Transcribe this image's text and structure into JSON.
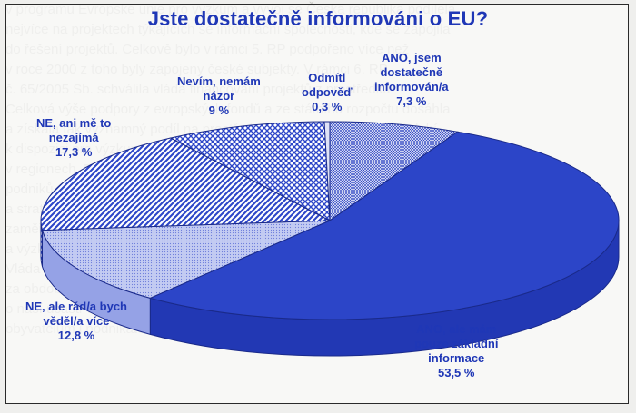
{
  "background_text": [
    "v programu Evropské unie pro výzkum a vývoj se Česká republika podílela",
    "nejvíce na projektech týkajících se informační společnosti, kde se zapojila",
    "do řešení projektů. Celkově bylo v rámci 5. RP podpořeno více než",
    "v roce 2000 z toho byly zapojeny české subjekty. V rámci 6. RP",
    "č. 65/2005 Sb. schválila vláda financování projektů z prostředků",
    "Celková výše podpory z evropských fondů a ze státního rozpočtu dosáhla",
    "a získala tak významný podíl na prostředcích, které byly v tomto období",
    "k dispozici pro výzkum a vývoj v oblasti informačních technologií a služeb",
    "v regionech. Další prostředky byly vynaloženy na podporu malých a středních",
    "podniků a na rozvoj lidských zdrojů v souladu s cíli Lisabonské strategie",
    "a strategie udržitelného rozvoje. Na tyto aktivity navazuje i nový program",
    "zaměřený na podporu inovací, transfer technologií a spolupráci mezi firmami",
    "a výzkumnými institucemi. Občané se o těchto programech dozvídají z médií",
    "Vláda připravila informační kampaň, jejímž cílem je zvýšit povědomí",
    "za období let 2004 až 2006 a s rozpočtovým výhledem na další roky",
    "o naší účasti v Evropské unii, jejích institucích a možnostech, které přináší",
    "obyvatelům i podnikatelům. Výsledky průzkumu ukazují, jak jsou informováni"
  ],
  "chart_data": {
    "type": "pie",
    "title": "Jste dostatečně informováni o EU?",
    "slices": [
      {
        "lines": [
          "ANO, jsem",
          "dostatečně",
          "informován/a"
        ],
        "value_label": "7,3 %",
        "value": 7.3,
        "pattern": "crosshatch-fine",
        "color": "#3349c4"
      },
      {
        "lines": [
          "ANO, ale mám",
          "pouze základní",
          "informace"
        ],
        "value_label": "53,5 %",
        "value": 53.5,
        "pattern": "solid",
        "color": "#2c45c8"
      },
      {
        "lines": [
          "NE, ale rád/a bych",
          "věděl/a více"
        ],
        "value_label": "12,8 %",
        "value": 12.8,
        "pattern": "light",
        "color": "#aab4ec"
      },
      {
        "lines": [
          "NE, ani mě to",
          "nezajímá"
        ],
        "value_label": "17,3 %",
        "value": 17.3,
        "pattern": "diagonal",
        "color": "#2c45c8"
      },
      {
        "lines": [
          "Nevím, nemám",
          "názor"
        ],
        "value_label": "9 %",
        "value": 9,
        "pattern": "checker",
        "color": "#2c45c8"
      },
      {
        "lines": [
          "Odmítl",
          "odpověď"
        ],
        "value_label": "0,3 %",
        "value": 0.3,
        "pattern": "plain",
        "color": "#dfe3f7"
      }
    ]
  }
}
